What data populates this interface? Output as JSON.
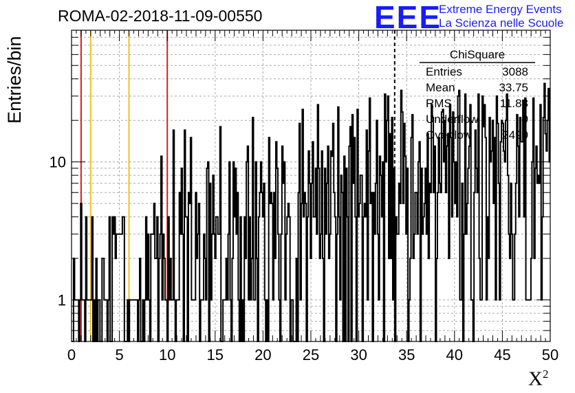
{
  "header": {
    "title": "ROMA-02-2018-11-09-00550",
    "logo_text": "EEE",
    "logo_line1": "Extreme Energy Events",
    "logo_line2": "La Scienza nelle Scuole",
    "logo_color": "#1a1aff"
  },
  "stats": {
    "title": "ChiSquare",
    "rows": [
      {
        "label": "Entries",
        "value": "3088"
      },
      {
        "label": "Mean",
        "value": "33.75"
      },
      {
        "label": "RMS",
        "value": "11.88"
      },
      {
        "label": "Underflow",
        "value": "0"
      },
      {
        "label": "Overflow",
        "value": "2490"
      }
    ]
  },
  "chart_data": {
    "type": "bar",
    "style": "step-histogram",
    "xlabel_base": "X",
    "xlabel_sup": "2",
    "ylabel": "Entries/bin",
    "xlim": [
      0,
      50
    ],
    "ylim": [
      0.5,
      90
    ],
    "y_scale": "log",
    "grid": true,
    "bin_width": 0.5,
    "x_ticks": [
      "0",
      "5",
      "10",
      "15",
      "20",
      "25",
      "30",
      "35",
      "40",
      "45",
      "50"
    ],
    "y_ticks": [
      "1",
      "10"
    ],
    "values": [
      0,
      0,
      2,
      1,
      1,
      1,
      1,
      0,
      1,
      5,
      1,
      1,
      1,
      0,
      4,
      1,
      1,
      1,
      1,
      1,
      4,
      0,
      1,
      0,
      2,
      0,
      1,
      1,
      0,
      0,
      2,
      2,
      1,
      1,
      1,
      0,
      1,
      4,
      0,
      0,
      4,
      3,
      4,
      2,
      3,
      3,
      3,
      3,
      3,
      3,
      4,
      4,
      0,
      0,
      0,
      1,
      0,
      1,
      1,
      1,
      1,
      1,
      1,
      1,
      1,
      0,
      1,
      2,
      0,
      0,
      1,
      0,
      1,
      4,
      1,
      3,
      1,
      0,
      3,
      3,
      3,
      5,
      2,
      2,
      4,
      0,
      2,
      3,
      11,
      1,
      3,
      2,
      1,
      1,
      0,
      4,
      1,
      2,
      1,
      1,
      17,
      1,
      0,
      1,
      1,
      1,
      6,
      3,
      9,
      3,
      0,
      17,
      4,
      4,
      0,
      6,
      5,
      15,
      1,
      1,
      1,
      1,
      6,
      2,
      3,
      5,
      0,
      1,
      1,
      1,
      3,
      2,
      1,
      9,
      10,
      0,
      7,
      1,
      3,
      8,
      3,
      2,
      4,
      4,
      3,
      3,
      18,
      0,
      0,
      1,
      1,
      1,
      2,
      1,
      3,
      10,
      1,
      0,
      2,
      10,
      4,
      9,
      3,
      6,
      1,
      0,
      4,
      0,
      1,
      0,
      4,
      2,
      10,
      13,
      1,
      4,
      1,
      2,
      21,
      1,
      1,
      10,
      2,
      0,
      4,
      6,
      10,
      6,
      4,
      7,
      1,
      0,
      1,
      0,
      15,
      5,
      6,
      5,
      1,
      6,
      2,
      14,
      9,
      3,
      1,
      0,
      3,
      13,
      7,
      10,
      1,
      3,
      4,
      5,
      4,
      0,
      1,
      1,
      0,
      0,
      0,
      2,
      0,
      6,
      19,
      1,
      5,
      24,
      4,
      6,
      5,
      0,
      4,
      12,
      7,
      2,
      7,
      14,
      4,
      4,
      9,
      3,
      26,
      9,
      2,
      3,
      12,
      2,
      0,
      9,
      3,
      7,
      13,
      2,
      3,
      12,
      11,
      19,
      6,
      4,
      0,
      3,
      25,
      4,
      1,
      8,
      6,
      0,
      11,
      0,
      9,
      4,
      0,
      13,
      18,
      0,
      22,
      7,
      15,
      4,
      0,
      24,
      4,
      5,
      8,
      8,
      0,
      4,
      5,
      4,
      17,
      1,
      12,
      29,
      5,
      6,
      0,
      6,
      3,
      7,
      20,
      3,
      1,
      11,
      8,
      4,
      10,
      0,
      31,
      10,
      20,
      30,
      2,
      16,
      2,
      21,
      1,
      9,
      0,
      4,
      3,
      3,
      7,
      5,
      33,
      23,
      5,
      19,
      11,
      3,
      9,
      0,
      1,
      2,
      15,
      22,
      2,
      3,
      6,
      6,
      3,
      10,
      14,
      0,
      9,
      3,
      4,
      5,
      9,
      3,
      16,
      2,
      7,
      6,
      26,
      21,
      6,
      13,
      0,
      2,
      6,
      15,
      7,
      6,
      23,
      24,
      10,
      20,
      6,
      13,
      16,
      2,
      26,
      15,
      4,
      23,
      10,
      5,
      10,
      4,
      30,
      33,
      1,
      1,
      7,
      0,
      3,
      31,
      3,
      5,
      9,
      13,
      26,
      1,
      1,
      0,
      6,
      17,
      9,
      6,
      31,
      2,
      1,
      1,
      30,
      18,
      26,
      15,
      1,
      4,
      2,
      21,
      10,
      12,
      20,
      5,
      15,
      1,
      30,
      19,
      7,
      1,
      14,
      20,
      19,
      12,
      10,
      20,
      31,
      8,
      3,
      2,
      7,
      3,
      1,
      1,
      3,
      7,
      22,
      13,
      4,
      21,
      14,
      14,
      28,
      4,
      29,
      1,
      1,
      1,
      1,
      1,
      2,
      10,
      29,
      2,
      9,
      13,
      7,
      8,
      7,
      26,
      1,
      4,
      21,
      37,
      16,
      12,
      20,
      34,
      10
    ],
    "displayed": {
      "comment": "coarse bin heights as drawn (0.5-wide bins)"
    },
    "markers": [
      {
        "x": 1,
        "color": "#e31a1c",
        "style": "solid"
      },
      {
        "x": 2,
        "color": "#f0c020",
        "style": "solid"
      },
      {
        "x": 6,
        "color": "#f0c020",
        "style": "solid"
      },
      {
        "x": 10,
        "color": "#e31a1c",
        "style": "solid"
      },
      {
        "x": 33.75,
        "color": "#000000",
        "style": "dashed"
      }
    ]
  }
}
